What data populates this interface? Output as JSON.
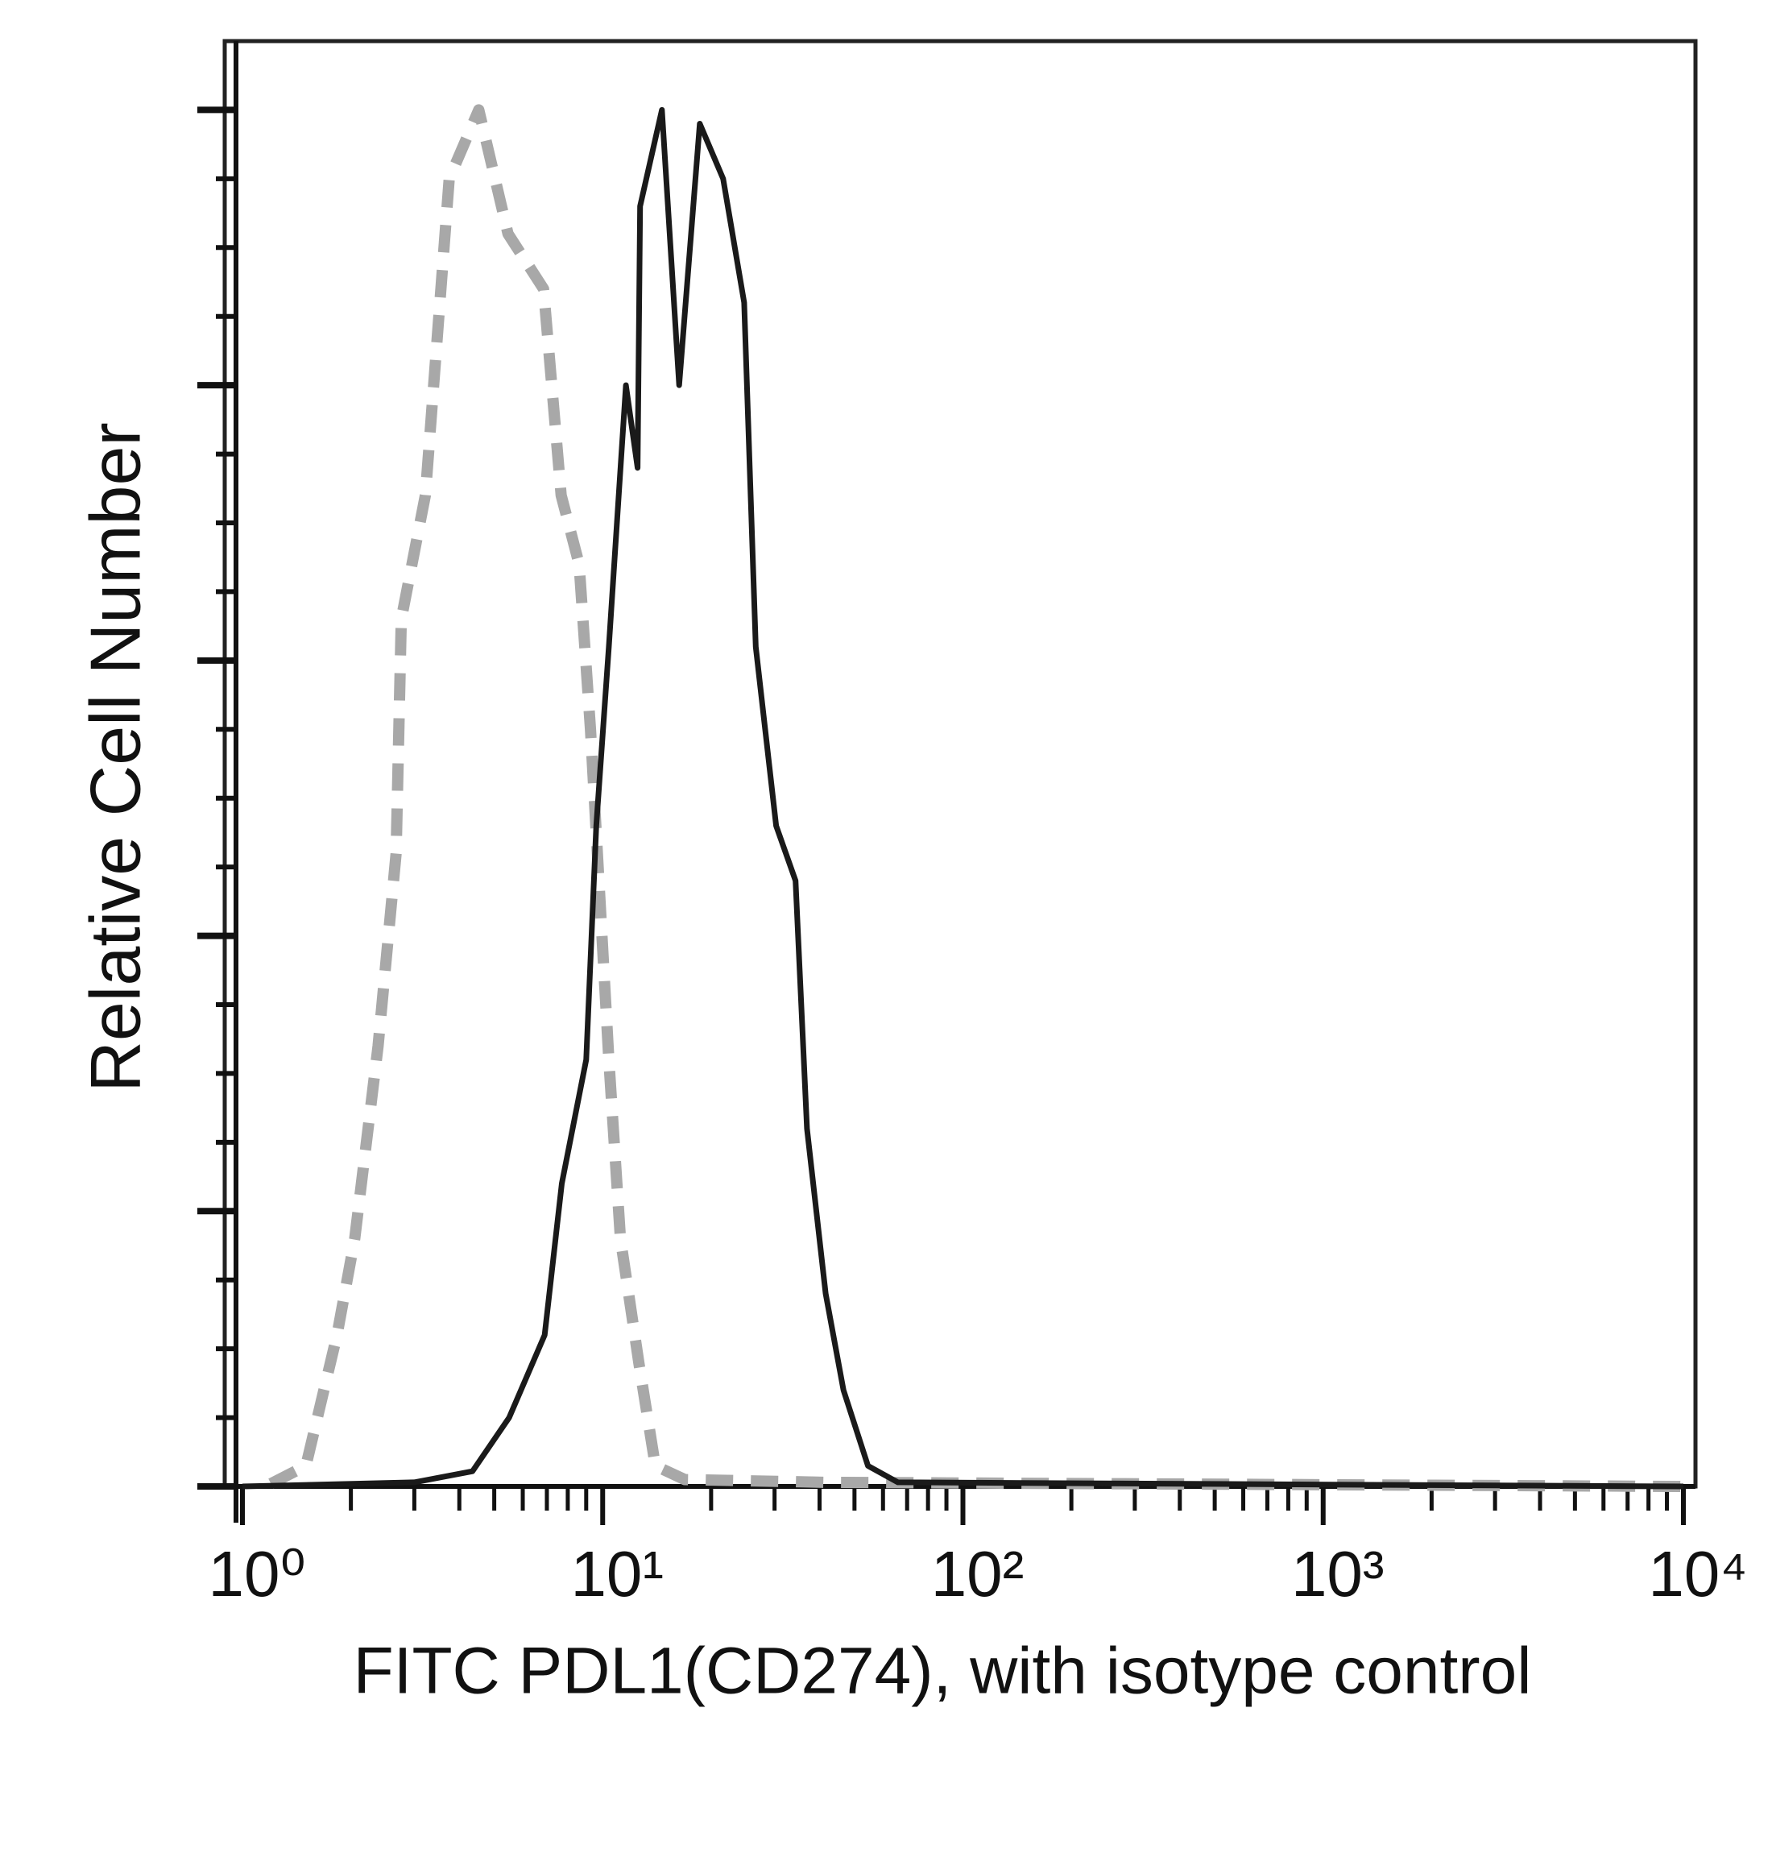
{
  "chart_data": {
    "type": "line",
    "ylabel": "Relative Cell Number",
    "xlabel": "FITC PDL1(CD274), with isotype control",
    "xscale": "log",
    "xlim": [
      1,
      10000
    ],
    "xticks": [
      {
        "value": 1,
        "label": "10⁰"
      },
      {
        "value": 10,
        "label": "10¹"
      },
      {
        "value": 100,
        "label": "10²"
      },
      {
        "value": 1000,
        "label": "10³"
      },
      {
        "value": 10000,
        "label": "10⁴"
      }
    ],
    "xminorticks": [
      2,
      3,
      4,
      5,
      6,
      7,
      8,
      9,
      20,
      30,
      40,
      50,
      60,
      70,
      80,
      90,
      200,
      300,
      400,
      500,
      600,
      700,
      800,
      900,
      2000,
      3000,
      4000,
      5000,
      6000,
      7000,
      8000,
      9000
    ],
    "ylim": [
      0,
      105
    ],
    "yticks": [
      0,
      5,
      10,
      15,
      20,
      25,
      30,
      35,
      40,
      45,
      50,
      55,
      60,
      65,
      70,
      75,
      80,
      85,
      90,
      95,
      100
    ],
    "series": [
      {
        "color": "#a8a8a8",
        "dashed": true,
        "x": [
          1.2,
          1.5,
          1.83,
          2.05,
          2.38,
          2.67,
          2.76,
          3.22,
          3.75,
          4.53,
          5.46,
          6.85,
          7.67,
          8.6,
          9.25,
          10.4,
          11.2,
          12.6,
          14.0,
          16.9,
          41.6,
          10000
        ],
        "values": [
          0.2,
          1.5,
          11,
          18,
          32,
          46,
          63,
          72,
          95,
          100,
          91,
          87,
          72,
          67,
          55,
          31,
          18,
          9,
          1.5,
          0.5,
          0.3,
          0
        ]
      },
      {
        "color": "#1a1a1a",
        "dashed": false,
        "x": [
          1.0,
          3.0,
          4.35,
          5.5,
          6.9,
          7.7,
          9.0,
          9.6,
          10.4,
          11.6,
          12.5,
          12.7,
          14.6,
          16.3,
          18.6,
          21.6,
          24.7,
          26.6,
          30.3,
          34.3,
          36.9,
          41.6,
          46.6,
          54.5,
          66,
          10000
        ],
        "values": [
          0,
          0.3,
          1.1,
          5,
          11,
          22,
          31,
          48,
          61,
          80,
          74,
          93,
          100,
          80,
          99,
          95,
          86,
          61,
          48,
          44,
          26,
          14,
          7,
          1.5,
          0.3,
          0
        ]
      }
    ]
  }
}
